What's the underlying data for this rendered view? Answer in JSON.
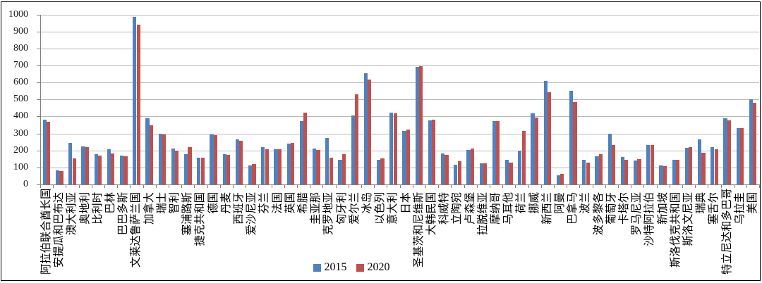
{
  "chart_data": {
    "type": "bar",
    "title": "",
    "xlabel": "",
    "ylabel": "",
    "ylim": [
      0,
      1000
    ],
    "yticks": [
      0,
      100,
      200,
      300,
      400,
      500,
      600,
      700,
      800,
      900,
      1000
    ],
    "grid": true,
    "legend_position": "bottom",
    "categories": [
      "阿拉伯联合酋长国",
      "安提瓜和巴布达",
      "澳大利亚",
      "奥地利",
      "比利时",
      "巴林",
      "巴巴多斯",
      "文莱达鲁萨兰国",
      "加拿大",
      "瑞士",
      "智利",
      "塞浦路斯",
      "捷克共和国",
      "德国",
      "丹麦",
      "西班牙",
      "爱沙尼亚",
      "芬兰",
      "法国",
      "英国",
      "希腊",
      "圭亚那",
      "克罗地亚",
      "匈牙利",
      "爱尔兰",
      "冰岛",
      "以色列",
      "意大利",
      "日本",
      "圣基茨和尼维斯",
      "大韩民国",
      "科威特",
      "立陶宛",
      "卢森堡",
      "拉脱维亚",
      "摩纳哥",
      "马耳他",
      "荷兰",
      "挪威",
      "新西兰",
      "阿曼",
      "巴拿马",
      "波兰",
      "波多黎各",
      "葡萄牙",
      "卡塔尔",
      "罗马尼亚",
      "沙特阿拉伯",
      "新加坡",
      "斯洛伐克共和国",
      "斯洛文尼亚",
      "瑞典",
      "塞舌尔",
      "特立尼达和多巴哥",
      "乌拉圭",
      "美国"
    ],
    "series": [
      {
        "name": "2015",
        "color": "#4F81BD",
        "values": [
          380,
          82,
          243,
          223,
          178,
          206,
          170,
          985,
          388,
          299,
          213,
          177,
          159,
          293,
          176,
          267,
          112,
          218,
          205,
          242,
          371,
          212,
          274,
          146,
          404,
          656,
          146,
          423,
          316,
          690,
          378,
          182,
          116,
          203,
          124,
          372,
          145,
          199,
          419,
          610,
          55,
          552,
          145,
          166,
          299,
          161,
          141,
          230,
          110,
          145,
          216,
          265,
          219,
          389,
          330,
          499
        ]
      },
      {
        "name": "2020",
        "color": "#C0504D",
        "values": [
          370,
          77,
          152,
          218,
          170,
          182,
          165,
          938,
          348,
          293,
          197,
          221,
          159,
          289,
          173,
          256,
          121,
          207,
          205,
          246,
          424,
          203,
          157,
          176,
          532,
          616,
          153,
          419,
          323,
          696,
          379,
          172,
          137,
          210,
          124,
          372,
          130,
          316,
          392,
          541,
          62,
          486,
          130,
          178,
          230,
          143,
          148,
          233,
          106,
          143,
          220,
          185,
          206,
          375,
          330,
          479
        ]
      }
    ]
  }
}
